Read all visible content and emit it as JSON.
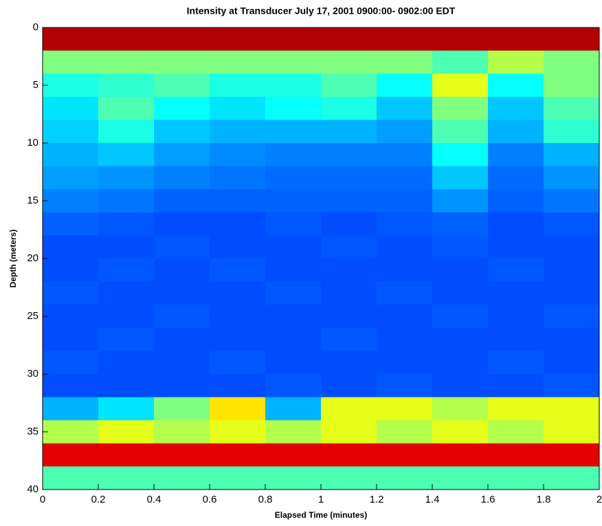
{
  "chart_data": {
    "type": "heatmap",
    "title": "Intensity at Transducer  July 17, 2001 0900:00- 0902:00 EDT",
    "xlabel": "Elapsed Time (minutes)",
    "ylabel": "Depth (meters)",
    "colormap": "jet",
    "y_reversed": true,
    "xlim": [
      0,
      2
    ],
    "ylim": [
      0,
      40
    ],
    "xticks": [
      0,
      0.2,
      0.4,
      0.6,
      0.8,
      1,
      1.2,
      1.4,
      1.6,
      1.8,
      2
    ],
    "yticks": [
      0,
      5,
      10,
      15,
      20,
      25,
      30,
      35,
      40
    ],
    "x_bins": [
      0,
      0.2,
      0.4,
      0.6,
      0.8,
      1,
      1.2,
      1.4,
      1.6,
      1.8,
      2
    ],
    "y_bins": [
      0,
      2,
      4,
      6,
      8,
      10,
      12,
      14,
      16,
      18,
      20,
      22,
      24,
      26,
      28,
      30,
      32,
      34,
      36,
      38,
      40
    ],
    "z": [
      [
        0.95,
        0.95,
        0.95,
        0.95,
        0.95,
        0.95,
        0.95,
        0.95,
        0.95,
        0.95
      ],
      [
        0.5,
        0.5,
        0.5,
        0.5,
        0.5,
        0.5,
        0.5,
        0.45,
        0.55,
        0.5
      ],
      [
        0.4,
        0.42,
        0.45,
        0.4,
        0.4,
        0.45,
        0.38,
        0.6,
        0.38,
        0.5
      ],
      [
        0.35,
        0.45,
        0.38,
        0.35,
        0.38,
        0.4,
        0.32,
        0.5,
        0.32,
        0.45
      ],
      [
        0.33,
        0.4,
        0.32,
        0.3,
        0.3,
        0.3,
        0.28,
        0.45,
        0.3,
        0.42
      ],
      [
        0.3,
        0.32,
        0.28,
        0.26,
        0.25,
        0.25,
        0.25,
        0.38,
        0.25,
        0.3
      ],
      [
        0.28,
        0.27,
        0.25,
        0.24,
        0.23,
        0.23,
        0.23,
        0.32,
        0.23,
        0.27
      ],
      [
        0.25,
        0.24,
        0.22,
        0.22,
        0.22,
        0.22,
        0.22,
        0.27,
        0.22,
        0.24
      ],
      [
        0.22,
        0.21,
        0.2,
        0.2,
        0.21,
        0.2,
        0.21,
        0.22,
        0.2,
        0.21
      ],
      [
        0.2,
        0.2,
        0.21,
        0.2,
        0.2,
        0.21,
        0.2,
        0.21,
        0.2,
        0.2
      ],
      [
        0.2,
        0.21,
        0.2,
        0.21,
        0.2,
        0.2,
        0.2,
        0.2,
        0.21,
        0.2
      ],
      [
        0.21,
        0.2,
        0.2,
        0.2,
        0.21,
        0.2,
        0.21,
        0.2,
        0.2,
        0.2
      ],
      [
        0.2,
        0.2,
        0.21,
        0.2,
        0.2,
        0.2,
        0.2,
        0.21,
        0.2,
        0.21
      ],
      [
        0.2,
        0.21,
        0.2,
        0.2,
        0.2,
        0.21,
        0.2,
        0.2,
        0.2,
        0.2
      ],
      [
        0.21,
        0.2,
        0.2,
        0.21,
        0.2,
        0.2,
        0.2,
        0.2,
        0.21,
        0.2
      ],
      [
        0.2,
        0.2,
        0.2,
        0.2,
        0.21,
        0.2,
        0.21,
        0.2,
        0.2,
        0.21
      ],
      [
        0.3,
        0.35,
        0.5,
        0.65,
        0.3,
        0.6,
        0.6,
        0.55,
        0.6,
        0.6
      ],
      [
        0.55,
        0.6,
        0.55,
        0.6,
        0.55,
        0.6,
        0.55,
        0.6,
        0.55,
        0.6
      ],
      [
        0.9,
        0.9,
        0.9,
        0.9,
        0.9,
        0.9,
        0.9,
        0.9,
        0.9,
        0.9
      ],
      [
        0.45,
        0.45,
        0.45,
        0.45,
        0.45,
        0.45,
        0.45,
        0.45,
        0.45,
        0.45
      ]
    ]
  }
}
